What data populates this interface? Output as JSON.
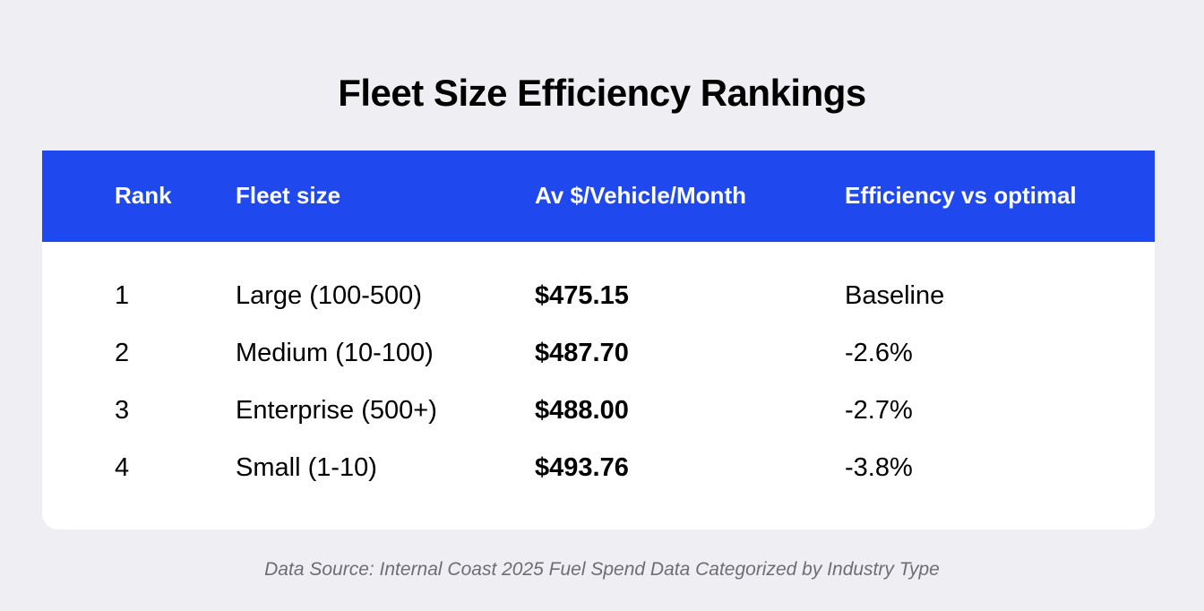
{
  "title": "Fleet Size Efficiency Rankings",
  "accent_color": "#1f48ee",
  "background_color": "#efeff3",
  "chart_data": {
    "type": "table",
    "title": "Fleet Size Efficiency Rankings",
    "columns": [
      "Rank",
      "Fleet size",
      "Av $/Vehicle/Month",
      "Efficiency vs optimal"
    ],
    "rows": [
      {
        "rank": "1",
        "fleet_size": "Large (100-500)",
        "avg_cost": "$475.15",
        "efficiency": "Baseline"
      },
      {
        "rank": "2",
        "fleet_size": "Medium (10-100)",
        "avg_cost": "$487.70",
        "efficiency": "-2.6%"
      },
      {
        "rank": "3",
        "fleet_size": "Enterprise (500+)",
        "avg_cost": "$488.00",
        "efficiency": "-2.7%"
      },
      {
        "rank": "4",
        "fleet_size": "Small (1-10)",
        "avg_cost": "$493.76",
        "efficiency": "-3.8%"
      }
    ]
  },
  "source_note": "Data Source: Internal Coast 2025 Fuel Spend Data Categorized by Industry Type"
}
